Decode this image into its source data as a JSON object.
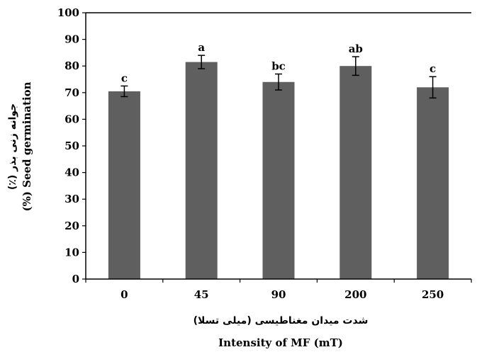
{
  "chart_data": {
    "type": "bar",
    "categories": [
      "0",
      "45",
      "90",
      "200",
      "250"
    ],
    "values": [
      70.5,
      81.5,
      74,
      80,
      72
    ],
    "errors": [
      2,
      2.5,
      3,
      3.5,
      4
    ],
    "significance_letters": [
      "c",
      "a",
      "bc",
      "ab",
      "c"
    ],
    "ylim": [
      0,
      100
    ],
    "yticks": [
      "0",
      "10",
      "20",
      "30",
      "40",
      "50",
      "60",
      "70",
      "80",
      "90",
      "100"
    ],
    "ylabel": "(%) Seed germination",
    "ylabel_fa": "جوانه زنی بذر (٪)",
    "xlabel": "Intensity of MF (mT)",
    "xlabel_fa": "شدت میدان مغناطیسی (میلی تسلا)",
    "bar_color": "#5f5f5f",
    "grid": false,
    "legend": "none"
  }
}
